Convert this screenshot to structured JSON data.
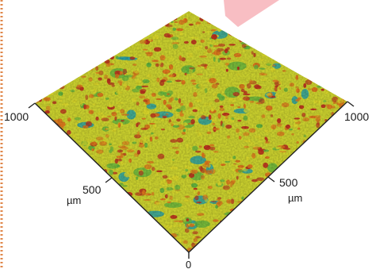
{
  "axis_labels": {
    "left_max": "1000",
    "left_mid": "500",
    "left_unit": "µm",
    "right_max": "1000",
    "right_mid": "500",
    "right_unit": "µm",
    "origin": "0"
  },
  "colors": {
    "peak_red": "#b8321e",
    "orange": "#d9731c",
    "yellow": "#d8d42a",
    "green": "#5fb03d",
    "cyan_low": "#1f9aa8",
    "left_border_dots": "#e0874a",
    "top_arrow": "#f7b3b8"
  }
}
